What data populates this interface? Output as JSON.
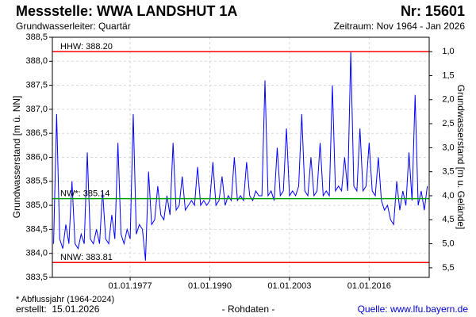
{
  "title": "Messstelle: WWA LANDSHUT 1A",
  "number": "Nr: 15601",
  "subtitle_left": "Grundwasserleiter: Quartär",
  "subtitle_right": "Zeitraum: Nov 1964 - Jan 2026",
  "chart_data": {
    "type": "line",
    "ylabel": "Grundwasserstand [m ü. NN]",
    "y2label": "Grundwasserstand [m u. Gelände]",
    "x": [
      1964.5,
      1965,
      1965.5,
      1966,
      1966.5,
      1967,
      1967.5,
      1968,
      1968.5,
      1969,
      1969.5,
      1970,
      1970.5,
      1971,
      1971.5,
      1972,
      1972.5,
      1973,
      1973.5,
      1974,
      1974.5,
      1975,
      1975.5,
      1976,
      1976.5,
      1977,
      1977.5,
      1978,
      1978.5,
      1979,
      1979.5,
      1980,
      1980.5,
      1981,
      1981.5,
      1982,
      1982.5,
      1983,
      1983.5,
      1984,
      1984.5,
      1985,
      1985.5,
      1986,
      1986.5,
      1987,
      1987.5,
      1988,
      1988.5,
      1989,
      1989.5,
      1990,
      1990.5,
      1991,
      1991.5,
      1992,
      1992.5,
      1993,
      1993.5,
      1994,
      1994.5,
      1995,
      1995.5,
      1996,
      1996.5,
      1997,
      1997.5,
      1998,
      1998.5,
      1999,
      1999.5,
      2000,
      2000.5,
      2001,
      2001.5,
      2002,
      2002.5,
      2003,
      2003.5,
      2004,
      2004.5,
      2005,
      2005.5,
      2006,
      2006.5,
      2007,
      2007.5,
      2008,
      2008.5,
      2009,
      2009.5,
      2010,
      2010.5,
      2011,
      2011.5,
      2012,
      2012.5,
      2013,
      2013.5,
      2014,
      2014.5,
      2015,
      2015.5,
      2016,
      2016.5,
      2017,
      2017.5,
      2018,
      2018.5,
      2019,
      2019.5,
      2020,
      2020.5,
      2021,
      2021.5,
      2022,
      2022.5,
      2023,
      2023.5,
      2024,
      2024.5,
      2025,
      2025.5
    ],
    "values": [
      384.2,
      386.9,
      384.3,
      384.1,
      384.6,
      384.2,
      385.5,
      384.2,
      384.1,
      384.4,
      384.2,
      386.1,
      384.3,
      384.2,
      384.5,
      384.2,
      385.3,
      384.3,
      384.2,
      384.8,
      384.3,
      386.3,
      384.4,
      384.2,
      384.5,
      384.3,
      386.9,
      384.4,
      384.6,
      384.5,
      383.85,
      385.7,
      384.6,
      384.7,
      385.4,
      384.8,
      384.7,
      385.2,
      384.8,
      386.3,
      384.9,
      385.0,
      385.6,
      384.9,
      385.0,
      385.1,
      385.0,
      385.8,
      385.0,
      385.1,
      385.0,
      385.1,
      385.9,
      385.0,
      385.1,
      385.6,
      385.0,
      385.2,
      385.1,
      386.0,
      385.1,
      385.2,
      385.1,
      385.9,
      385.2,
      385.1,
      385.3,
      385.2,
      385.2,
      387.6,
      385.2,
      385.3,
      385.1,
      386.2,
      385.2,
      385.3,
      386.6,
      385.2,
      385.3,
      385.2,
      385.4,
      386.9,
      385.3,
      385.2,
      386.0,
      385.2,
      385.3,
      386.3,
      385.2,
      385.3,
      385.2,
      387.5,
      385.3,
      385.4,
      385.3,
      386.0,
      385.3,
      388.2,
      385.4,
      385.3,
      386.6,
      385.3,
      385.4,
      386.3,
      385.3,
      385.2,
      386.0,
      385.1,
      384.9,
      385.0,
      384.7,
      384.6,
      385.5,
      384.9,
      385.3,
      385.0,
      386.1,
      385.1,
      387.3,
      385.0,
      385.3,
      384.9,
      385.4
    ],
    "color": "#0000ff",
    "xlim": [
      1964.3,
      2025.8
    ],
    "xticks": [
      {
        "value": 1977,
        "label": "01.01.1977"
      },
      {
        "value": 1990,
        "label": "01.01.1990"
      },
      {
        "value": 2003,
        "label": "01.01.2003"
      },
      {
        "value": 2016,
        "label": "01.01.2016"
      }
    ],
    "ylim": [
      383.5,
      388.5
    ],
    "yticks": [
      {
        "value": 383.5,
        "label": "383,5"
      },
      {
        "value": 384,
        "label": "384,0"
      },
      {
        "value": 384.5,
        "label": "384,5"
      },
      {
        "value": 385,
        "label": "385,0"
      },
      {
        "value": 385.5,
        "label": "385,5"
      },
      {
        "value": 386,
        "label": "386,0"
      },
      {
        "value": 386.5,
        "label": "386,5"
      },
      {
        "value": 387,
        "label": "387,0"
      },
      {
        "value": 387.5,
        "label": "387,5"
      },
      {
        "value": 388,
        "label": "388,0"
      },
      {
        "value": 388.5,
        "label": "388,5"
      }
    ],
    "y2lim": [
      5.7,
      0.7
    ],
    "y2ticks": [
      {
        "value": 1,
        "label": "1,0"
      },
      {
        "value": 1.5,
        "label": "1,5"
      },
      {
        "value": 2,
        "label": "2,0"
      },
      {
        "value": 2.5,
        "label": "2,5"
      },
      {
        "value": 3,
        "label": "3,0"
      },
      {
        "value": 3.5,
        "label": "3,5"
      },
      {
        "value": 4,
        "label": "4,0"
      },
      {
        "value": 4.5,
        "label": "4,5"
      },
      {
        "value": 5,
        "label": "5,0"
      },
      {
        "value": 5.5,
        "label": "5,5"
      }
    ],
    "grid": true,
    "reference_lines": [
      {
        "label": "HHW: 388.20",
        "value": 388.2,
        "color": "#ff0000"
      },
      {
        "label": "NW*: 385.14",
        "value": 385.14,
        "color": "#00a000"
      },
      {
        "label": "NNW: 383.81",
        "value": 383.81,
        "color": "#ff0000"
      }
    ]
  },
  "footnote": "* Abflussjahr (1964-2024)",
  "created": "erstellt:  15.01.2026",
  "raw": "- Rohdaten -",
  "source": "Quelle: www.lfu.bayern.de"
}
